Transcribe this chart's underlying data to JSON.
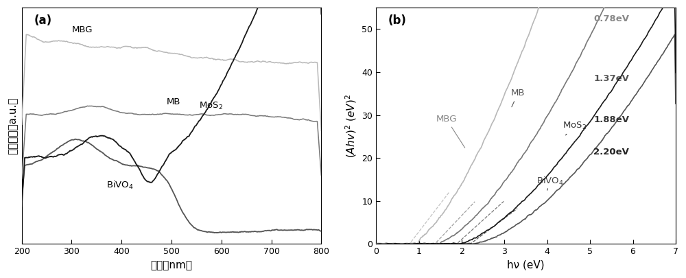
{
  "panel_a": {
    "label": "(a)",
    "xlabel": "波长（nm）",
    "ylabel": "吸收光强（a.u.）",
    "xlim": [
      200,
      800
    ],
    "xticks": [
      200,
      300,
      400,
      500,
      600,
      700,
      800
    ]
  },
  "panel_b": {
    "label": "(b)",
    "xlabel": "hν (eV)",
    "ylabel": "(Ahν)² (eV)²",
    "xlim": [
      0,
      7
    ],
    "ylim": [
      0,
      55
    ],
    "xticks": [
      0,
      1,
      2,
      3,
      4,
      5,
      6,
      7
    ],
    "yticks": [
      0,
      10,
      20,
      30,
      40,
      50
    ]
  },
  "colors": {
    "MBG": "#b8b8b8",
    "MB": "#787878",
    "MoS2": "#1a1a1a",
    "BiVO4": "#555555"
  },
  "bg_color": "#ffffff"
}
